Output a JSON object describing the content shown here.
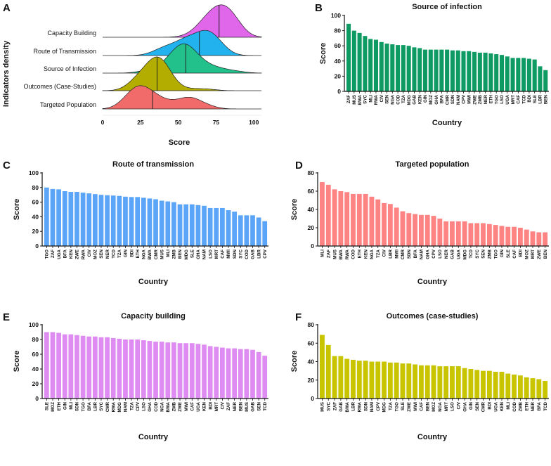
{
  "chart_data": [
    {
      "panel": "A",
      "type": "ridgeline",
      "xlabel": "Score",
      "ylabel": "Indicators density",
      "xlim": [
        0,
        105
      ],
      "xticks": [
        0,
        25,
        50,
        75,
        100
      ],
      "series_order": [
        "Capacity Building",
        "Route of Transmission",
        "Source of Infection",
        "Outcomes (Case-Studies)",
        "Targeted Population"
      ],
      "colors": {
        "Capacity Building": "#e066ea",
        "Route of Transmission": "#22b2ee",
        "Source of Infection": "#22c08a",
        "Outcomes (Case-Studies)": "#b3ad00",
        "Targeted Population": "#f26b6b"
      },
      "source_panels": {
        "Capacity Building": "E",
        "Route of Transmission": "C",
        "Source of Infection": "B",
        "Outcomes (Case-Studies)": "F",
        "Targeted Population": "D"
      }
    },
    {
      "panel": "B",
      "type": "bar",
      "title": "Source of infection",
      "xlabel": "Country",
      "ylabel": "Score",
      "ylim": [
        0,
        100
      ],
      "yticks": [
        0,
        20,
        40,
        60,
        80,
        100
      ],
      "color": "#0e9a63",
      "categories": [
        "ZAF",
        "MUS",
        "BWA",
        "SYC",
        "MLI",
        "RWA",
        "CIV",
        "SEN",
        "NGA",
        "COD",
        "TZA",
        "MDG",
        "GAB",
        "KEN",
        "GIN",
        "MOZ",
        "GHA",
        "BFA",
        "CMR",
        "SDN",
        "NAM",
        "CPV",
        "MWI",
        "ZWE",
        "ZMB",
        "NER",
        "ETH",
        "TGO",
        "LSO",
        "UGA",
        "MRT",
        "CAF",
        "TCD",
        "BDI",
        "SLE",
        "LBR",
        "BEN"
      ],
      "values": [
        89,
        80,
        77,
        73,
        69,
        68,
        65,
        63,
        62,
        61,
        61,
        60,
        58,
        57,
        55,
        55,
        55,
        55,
        55,
        54,
        54,
        53,
        53,
        52,
        51,
        51,
        50,
        49,
        48,
        46,
        44,
        44,
        44,
        43,
        42,
        33,
        28
      ]
    },
    {
      "panel": "C",
      "type": "bar",
      "title": "Route of transmission",
      "xlabel": "Country",
      "ylabel": "Score",
      "ylim": [
        0,
        100
      ],
      "yticks": [
        0,
        20,
        40,
        60,
        80,
        100
      ],
      "color": "#5aa5f7",
      "categories": [
        "TGO",
        "ZAF",
        "UGA",
        "BFA",
        "KEN",
        "ZWE",
        "RWA",
        "CIV",
        "MOZ",
        "SEN",
        "NER",
        "TCD",
        "TZA",
        "GIN",
        "BDI",
        "ETH",
        "NGA",
        "BWA",
        "CMR",
        "MUS",
        "MLI",
        "ZMB",
        "BEN",
        "MDG",
        "SLE",
        "GHA",
        "NAM",
        "LSO",
        "MRT",
        "CAF",
        "MWI",
        "SDN",
        "SYC",
        "COD",
        "GAB",
        "LBR",
        "CPV"
      ],
      "values": [
        80,
        78,
        77.5,
        75,
        74,
        74,
        73,
        72,
        71,
        70,
        69.5,
        69,
        68.5,
        67.5,
        67,
        67,
        66,
        65,
        64,
        62,
        61,
        60,
        57,
        57,
        57,
        56,
        55,
        52,
        52,
        52,
        49,
        47,
        42,
        42,
        42,
        39,
        34
      ]
    },
    {
      "panel": "D",
      "type": "bar",
      "title": "Targeted population",
      "xlabel": "Country",
      "ylabel": "Score",
      "ylim": [
        0,
        80
      ],
      "yticks": [
        0,
        20,
        40,
        60,
        80
      ],
      "color": "#fe8383",
      "categories": [
        "MLI",
        "ZAF",
        "MUS",
        "BWA",
        "RWA",
        "COD",
        "ETH",
        "KEN",
        "NGA",
        "TZA",
        "CIV",
        "LBR",
        "MWI",
        "CMR",
        "SDN",
        "BFA",
        "NAM",
        "GHA",
        "CPV",
        "LSO",
        "NER",
        "GAB",
        "UGA",
        "MDG",
        "TCD",
        "SYC",
        "SEN",
        "ZMB",
        "TGO",
        "GIN",
        "SLE",
        "CAF",
        "BDI",
        "MOZ",
        "MRT",
        "ZWE",
        "BEN"
      ],
      "values": [
        70,
        67,
        62,
        60,
        59,
        57,
        57,
        57,
        54,
        51,
        47,
        46,
        42,
        38,
        36,
        35,
        34,
        34,
        33,
        30,
        27,
        27,
        27,
        27,
        25,
        25,
        25,
        24,
        23,
        22,
        21,
        21,
        20,
        18,
        16,
        15,
        15
      ]
    },
    {
      "panel": "E",
      "type": "bar",
      "title": "Capacity building",
      "xlabel": "Country",
      "ylabel": "Score",
      "ylim": [
        0,
        100
      ],
      "yticks": [
        0,
        20,
        40,
        60,
        80,
        100
      ],
      "color": "#de8cf2",
      "categories": [
        "SLE",
        "MOZ",
        "ETH",
        "GIN",
        "MLI",
        "SDN",
        "TGO",
        "BFA",
        "LBR",
        "SYC",
        "CMR",
        "RWA",
        "MDG",
        "NAM",
        "TZA",
        "CPV",
        "LSO",
        "GHA",
        "COD",
        "NGA",
        "BWA",
        "ZMB",
        "ZWE",
        "MWI",
        "CAF",
        "UGA",
        "KEN",
        "BDI",
        "MRT",
        "CIV",
        "ZAF",
        "NER",
        "BEN",
        "MUS",
        "GAB",
        "SEN",
        "TCD"
      ],
      "values": [
        90,
        90,
        89,
        87,
        87,
        86,
        85,
        84,
        84,
        83,
        83,
        82,
        81,
        80,
        80,
        80,
        79,
        78,
        77,
        77,
        76,
        76,
        75,
        75,
        75,
        74,
        73,
        71,
        70,
        69,
        68,
        68,
        67,
        67,
        66,
        63,
        58
      ]
    },
    {
      "panel": "F",
      "type": "bar",
      "title": "Outcomes (case-studies)",
      "xlabel": "Country",
      "ylabel": "Score",
      "ylim": [
        0,
        80
      ],
      "yticks": [
        0,
        20,
        40,
        60,
        80
      ],
      "color": "#c8c400",
      "categories": [
        "MUS",
        "SYC",
        "ZAF",
        "GAB",
        "BWA",
        "LBR",
        "RWA",
        "SDN",
        "NAM",
        "CPV",
        "MDG",
        "TZA",
        "TGO",
        "SLE",
        "ZWE",
        "MWI",
        "CAF",
        "BEN",
        "MOZ",
        "NGA",
        "MRT",
        "LSO",
        "CIV",
        "GHA",
        "GIN",
        "SEN",
        "CMR",
        "BDI",
        "UGA",
        "KEN",
        "MLI",
        "COD",
        "ZMB",
        "ETH",
        "NER",
        "BFA",
        "TCD"
      ],
      "values": [
        69,
        58,
        46,
        46,
        43,
        42,
        41,
        41,
        40,
        40,
        40,
        39,
        39,
        38,
        38,
        37,
        36,
        36,
        36,
        35,
        35,
        35,
        35,
        33,
        32,
        31,
        30,
        30,
        29,
        29,
        27,
        26,
        25,
        23,
        22,
        21,
        19
      ]
    }
  ]
}
